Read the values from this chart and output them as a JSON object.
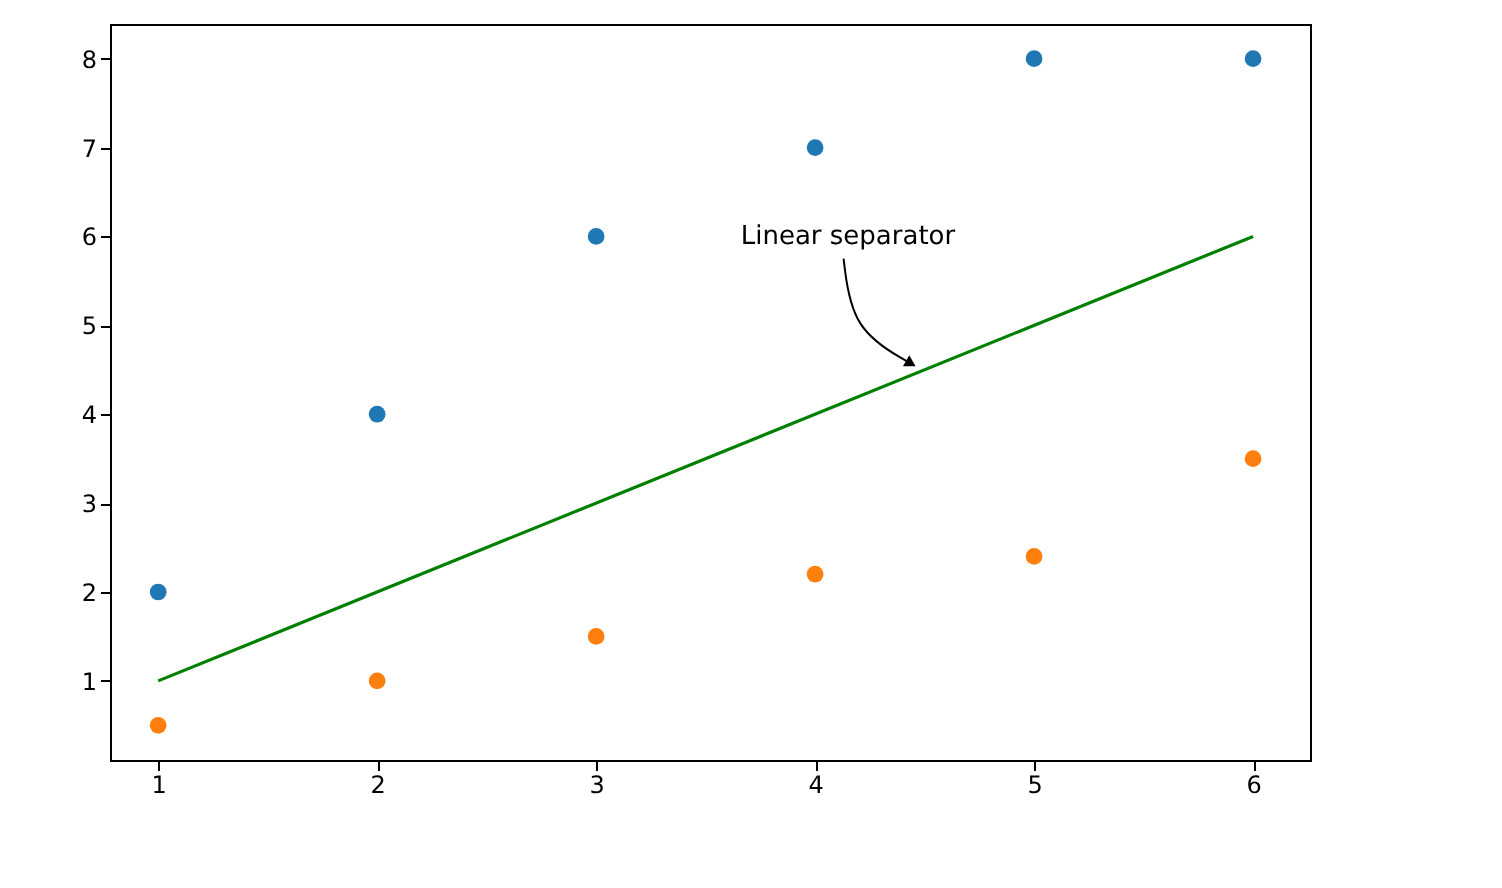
{
  "chart_data": {
    "type": "scatter",
    "xlim": [
      0.78,
      6.26
    ],
    "ylim": [
      0.11,
      8.39
    ],
    "xticks": [
      1,
      2,
      3,
      4,
      5,
      6
    ],
    "yticks": [
      1,
      2,
      3,
      4,
      5,
      6,
      7,
      8
    ],
    "grid": false,
    "legend": false,
    "marker": "circle",
    "series": [
      {
        "color": "#1f77b4",
        "x": [
          1,
          2,
          3,
          4,
          5,
          6
        ],
        "values": [
          2,
          4,
          6,
          7,
          8,
          8
        ]
      },
      {
        "color": "#ff7f0e",
        "x": [
          1,
          2,
          3,
          4,
          5,
          6
        ],
        "values": [
          0.5,
          1,
          1.5,
          2.2,
          2.4,
          3.5
        ]
      },
      {
        "type": "line",
        "color": "#008000",
        "x": [
          1,
          6
        ],
        "values": [
          1,
          6
        ],
        "line_style": "solid",
        "marker": "none"
      }
    ],
    "annotations": [
      {
        "text": "Linear separator",
        "x": 4.45,
        "y": 4.55
      }
    ]
  }
}
